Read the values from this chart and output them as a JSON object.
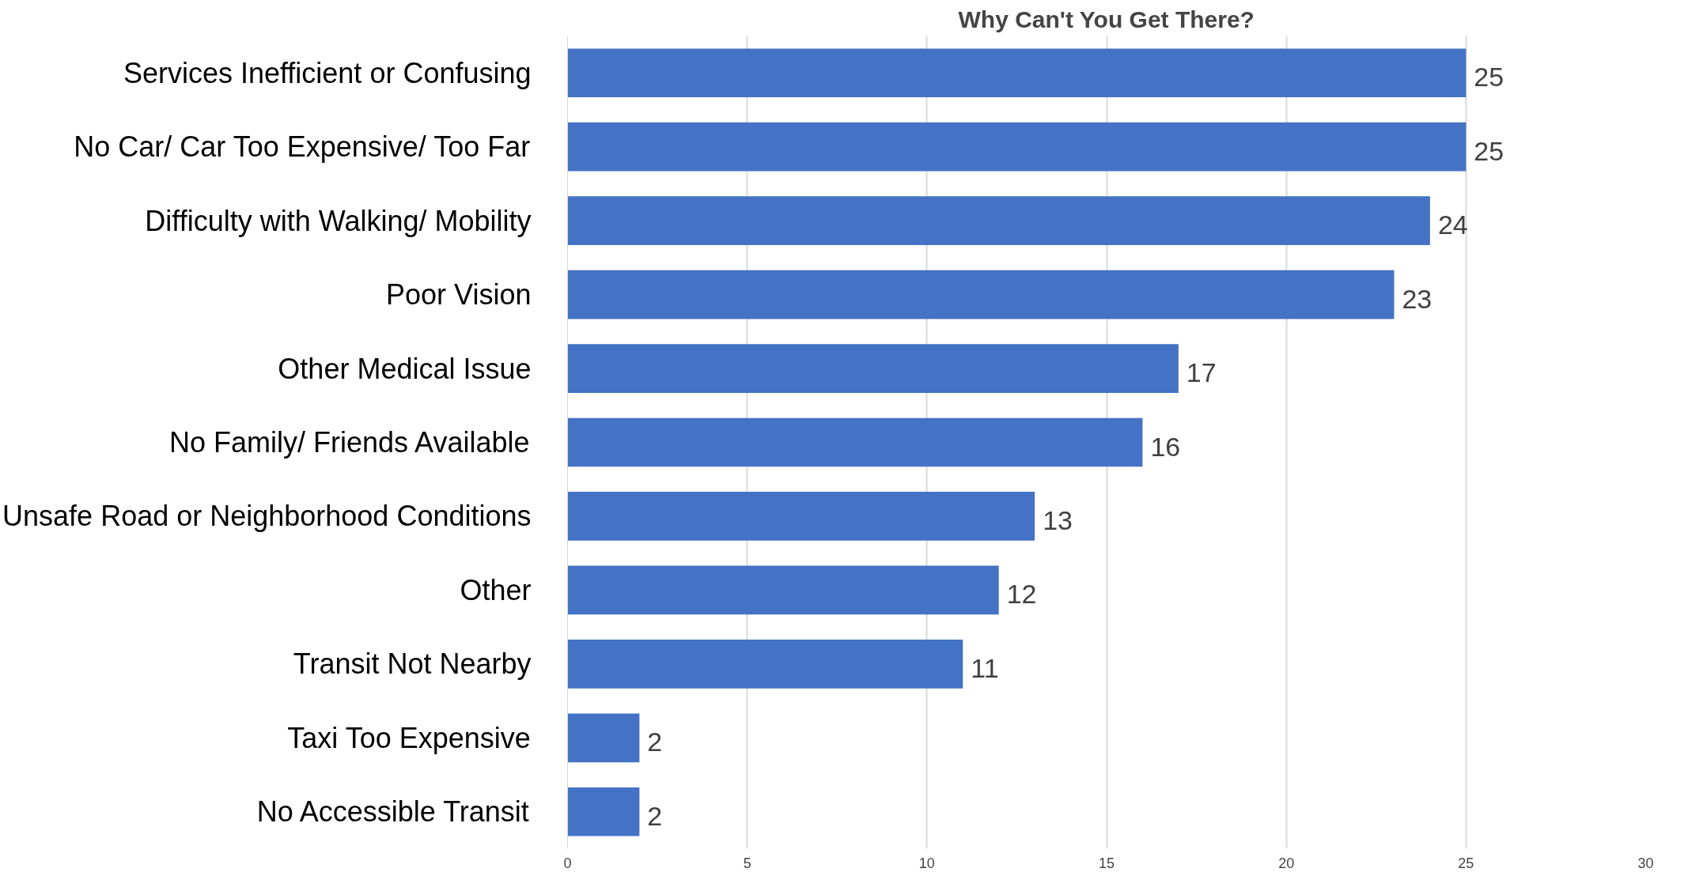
{
  "chart_data": {
    "type": "bar",
    "orientation": "horizontal",
    "title": "Why Can't You Get There?",
    "categories": [
      "Services Inefficient or Confusing",
      "No Car/ Car Too Expensive/ Too Far",
      "Difficulty with Walking/ Mobility",
      "Poor Vision",
      "Other Medical Issue",
      "No Family/ Friends Available",
      "Unsafe Road or Neighborhood Conditions",
      "Other",
      "Transit Not Nearby",
      "Taxi Too Expensive",
      "No Accessible Transit"
    ],
    "values": [
      25,
      25,
      24,
      23,
      17,
      16,
      13,
      12,
      11,
      2,
      2
    ],
    "color": "#4472c4",
    "xlim": [
      0,
      30
    ],
    "xticks": [
      0,
      5,
      10,
      15,
      20,
      25,
      30
    ],
    "grid": "x",
    "data_labels": true
  }
}
